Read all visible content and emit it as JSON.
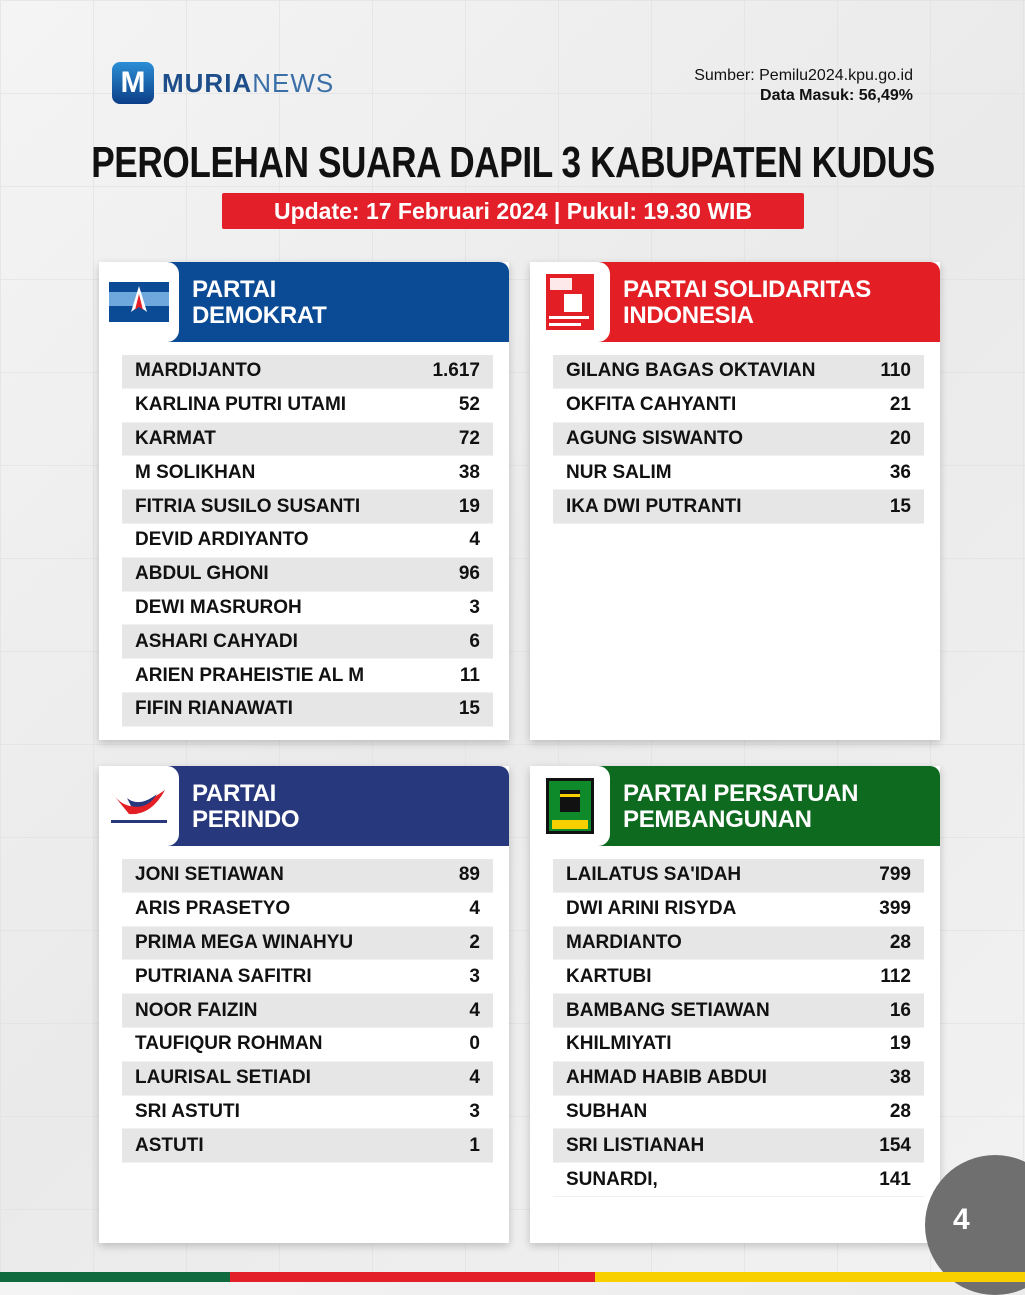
{
  "brand": {
    "logo_letter": "M",
    "name_bold": "MURIA",
    "name_light": "NEWS"
  },
  "source": {
    "line1": "Sumber: Pemilu2024.kpu.go.id",
    "line2": "Data Masuk: 56,49%"
  },
  "title": "PEROLEHAN SUARA DAPIL 3 KABUPATEN KUDUS",
  "update": "Update: 17 Februari 2024 | Pukul: 19.30 WIB",
  "page_number": "4",
  "colors": {
    "demokrat": "#0b4a94",
    "psi": "#e31e24",
    "perindo": "#27387d",
    "ppp": "#0e6a1e",
    "bar_green": "#0f6b3e",
    "bar_red": "#e3202a",
    "bar_yellow": "#f8d000"
  },
  "parties": [
    {
      "name": "PARTAI DEMOKRAT",
      "line1": "PARTAI",
      "line2": "DEMOKRAT",
      "logo_text": "PARTAI DEMOKRAT",
      "candidates": [
        {
          "name": "MARDIJANTO",
          "votes": "1.617"
        },
        {
          "name": "KARLINA PUTRI UTAMI",
          "votes": "52"
        },
        {
          "name": "KARMAT",
          "votes": "72"
        },
        {
          "name": "M SOLIKHAN",
          "votes": "38"
        },
        {
          "name": "FITRIA SUSILO SUSANTI",
          "votes": "19"
        },
        {
          "name": "DEVID ARDIYANTO",
          "votes": "4"
        },
        {
          "name": "ABDUL GHONI",
          "votes": "96"
        },
        {
          "name": "DEWI MASRUROH",
          "votes": "3"
        },
        {
          "name": "ASHARI CAHYADI",
          "votes": "6"
        },
        {
          "name": "ARIEN PRAHEISTIE AL M",
          "votes": "11"
        },
        {
          "name": "FIFIN RIANAWATI",
          "votes": "15"
        }
      ]
    },
    {
      "name": "PARTAI SOLIDARITAS INDONESIA",
      "line1": "PARTAI SOLIDARITAS",
      "line2": "INDONESIA",
      "logo_text": "PSI",
      "candidates": [
        {
          "name": "GILANG BAGAS OKTAVIAN",
          "votes": "110"
        },
        {
          "name": "OKFITA CAHYANTI",
          "votes": "21"
        },
        {
          "name": "AGUNG SISWANTO",
          "votes": "20"
        },
        {
          "name": "NUR SALIM",
          "votes": "36"
        },
        {
          "name": "IKA DWI PUTRANTI",
          "votes": "15"
        }
      ]
    },
    {
      "name": "PARTAI PERINDO",
      "line1": "PARTAI",
      "line2": "PERINDO",
      "logo_text": "PARTAI PERINDO",
      "candidates": [
        {
          "name": "JONI SETIAWAN",
          "votes": "89"
        },
        {
          "name": "ARIS PRASETYO",
          "votes": "4"
        },
        {
          "name": "PRIMA MEGA WINAHYU",
          "votes": "2"
        },
        {
          "name": "PUTRIANA SAFITRI",
          "votes": "3"
        },
        {
          "name": "NOOR FAIZIN",
          "votes": "4"
        },
        {
          "name": "TAUFIQUR ROHMAN",
          "votes": "0"
        },
        {
          "name": "LAURISAL SETIADI",
          "votes": "4"
        },
        {
          "name": "SRI ASTUTI",
          "votes": "3"
        },
        {
          "name": "ASTUTI",
          "votes": "1"
        }
      ]
    },
    {
      "name": "PARTAI PERSATUAN PEMBANGUNAN",
      "line1": "PARTAI PERSATUAN",
      "line2": "PEMBANGUNAN",
      "logo_text": "PPP",
      "candidates": [
        {
          "name": "LAILATUS SA'IDAH",
          "votes": "799"
        },
        {
          "name": "DWI ARINI RISYDA",
          "votes": "399"
        },
        {
          "name": "MARDIANTO",
          "votes": "28"
        },
        {
          "name": "KARTUBI",
          "votes": "112"
        },
        {
          "name": "BAMBANG SETIAWAN",
          "votes": "16"
        },
        {
          "name": "KHILMIYATI",
          "votes": "19"
        },
        {
          "name": "AHMAD HABIB ABDUI",
          "votes": "38"
        },
        {
          "name": "SUBHAN",
          "votes": "28"
        },
        {
          "name": "SRI LISTIANAH",
          "votes": "154"
        },
        {
          "name": "SUNARDI,",
          "votes": "141"
        }
      ]
    }
  ]
}
